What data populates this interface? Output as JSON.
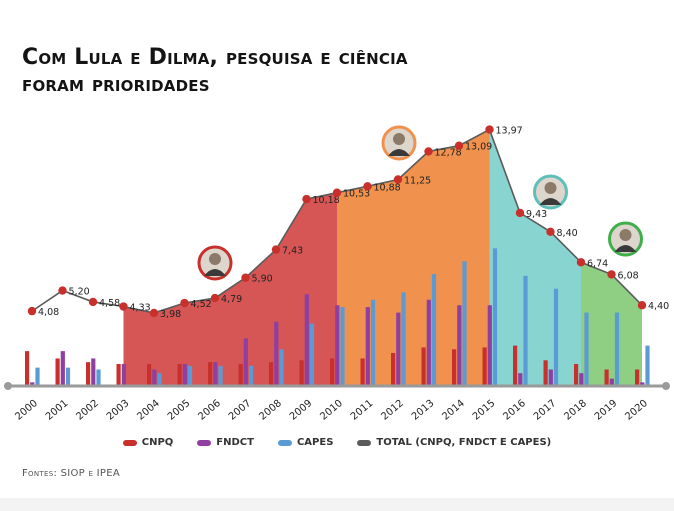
{
  "title_line1": "Com Lula e Dilma, pesquisa e ciência",
  "title_line2": "foram prioridades",
  "source": "Fontes: SIOP e IPEA",
  "chart_data": {
    "type": "area",
    "categories": [
      "2000",
      "2001",
      "2002",
      "2003",
      "2004",
      "2005",
      "2006",
      "2007",
      "2008",
      "2009",
      "2010",
      "2011",
      "2012",
      "2013",
      "2014",
      "2015",
      "2016",
      "2017",
      "2018",
      "2019",
      "2020"
    ],
    "series": [
      {
        "name": "TOTAL (CNPQ, FNDCT E CAPES)",
        "color": "#5b5b5b",
        "values": [
          4.08,
          5.2,
          4.58,
          4.33,
          3.98,
          4.52,
          4.79,
          5.9,
          7.43,
          10.18,
          10.53,
          10.88,
          11.25,
          12.78,
          13.09,
          13.97,
          9.43,
          8.4,
          6.74,
          6.08,
          4.4
        ],
        "labels": [
          "4,08",
          "5,20",
          "4,58",
          "4,33",
          "3,98",
          "4,52",
          "4,79",
          "5,90",
          "7,43",
          "10,18",
          "10,53",
          "10,88",
          "11,25",
          "12,78",
          "13,09",
          "13,97",
          "9,43",
          "8,40",
          "6,74",
          "6,08",
          "4,40"
        ]
      },
      {
        "name": "CNPQ",
        "color": "#c8302c",
        "values": [
          1.9,
          1.5,
          1.3,
          1.2,
          1.2,
          1.2,
          1.3,
          1.2,
          1.3,
          1.4,
          1.5,
          1.5,
          1.8,
          2.1,
          2.0,
          2.1,
          2.2,
          1.4,
          1.2,
          0.9,
          0.9
        ]
      },
      {
        "name": "FNDCT",
        "color": "#8e3fa0",
        "values": [
          0.2,
          1.9,
          1.5,
          1.2,
          0.9,
          1.2,
          1.3,
          2.6,
          3.5,
          5.0,
          4.4,
          4.3,
          4.0,
          4.7,
          4.4,
          4.4,
          0.7,
          0.9,
          0.7,
          0.4,
          0.2
        ]
      },
      {
        "name": "CAPES",
        "color": "#5b9bd5",
        "values": [
          1.0,
          1.0,
          0.9,
          0.0,
          0.7,
          1.1,
          1.1,
          1.1,
          2.0,
          3.4,
          4.3,
          4.7,
          5.1,
          6.1,
          6.8,
          7.5,
          6.0,
          5.3,
          4.0,
          4.0,
          2.2
        ]
      }
    ],
    "periods": [
      {
        "from": "2000",
        "to": "2003",
        "color": "#ffffff"
      },
      {
        "from": "2003",
        "to": "2010",
        "color": "#d65656"
      },
      {
        "from": "2010",
        "to": "2015",
        "color": "#f0924d"
      },
      {
        "from": "2015",
        "to": "2018",
        "color": "#88d4d0"
      },
      {
        "from": "2018",
        "to": "2020",
        "color": "#8fcf84"
      }
    ],
    "ylim": [
      0,
      15
    ],
    "legend_position": "bottom"
  },
  "portraits": [
    {
      "year": "2006",
      "ring": "#c8302c"
    },
    {
      "year": "2012",
      "ring": "#f0924d"
    },
    {
      "year": "2017",
      "ring": "#5ebfb9"
    },
    {
      "year": "2019",
      "ring": "#3fae4b"
    }
  ]
}
